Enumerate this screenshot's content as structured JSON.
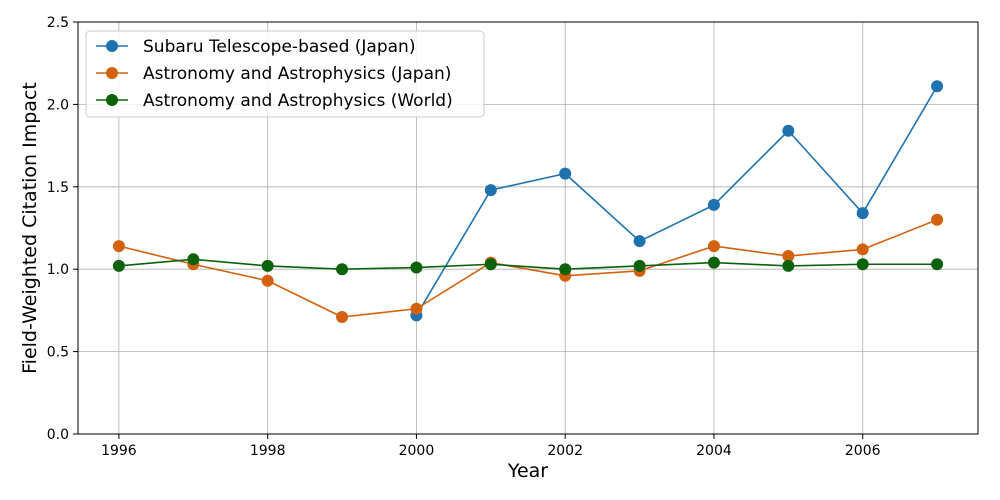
{
  "chart_data": {
    "type": "line",
    "title": "",
    "xlabel": "Year",
    "ylabel": "Field-Weighted Citation Impact",
    "xlim": [
      1995.45,
      2007.55
    ],
    "ylim": [
      0,
      2.5
    ],
    "xticks": [
      1996,
      1998,
      2000,
      2002,
      2004,
      2006
    ],
    "xtick_labels": [
      "1996",
      "1998",
      "2000",
      "2002",
      "2004",
      "2006"
    ],
    "yticks": [
      0,
      0.5,
      1.0,
      1.5,
      2.0,
      2.5
    ],
    "ytick_labels": [
      "0.0",
      "0.5",
      "1.0",
      "1.5",
      "2.0",
      "2.5"
    ],
    "grid": true,
    "legend_position": "top-left",
    "series": [
      {
        "name": "Subaru Telescope-based (Japan)",
        "color": "#1f72b0",
        "x": [
          2000,
          2001,
          2002,
          2003,
          2004,
          2005,
          2006,
          2007
        ],
        "y": [
          0.72,
          1.48,
          1.58,
          1.17,
          1.39,
          1.84,
          1.34,
          2.11
        ]
      },
      {
        "name": "Astronomy and Astrophysics (Japan)",
        "color": "#d2620f",
        "x": [
          1996,
          1997,
          1998,
          1999,
          2000,
          2001,
          2002,
          2003,
          2004,
          2005,
          2006,
          2007
        ],
        "y": [
          1.14,
          1.03,
          0.93,
          0.71,
          0.76,
          1.04,
          0.96,
          0.99,
          1.14,
          1.08,
          1.12,
          1.3
        ]
      },
      {
        "name": "Astronomy and Astrophysics (World)",
        "color": "#0b620b",
        "x": [
          1996,
          1997,
          1998,
          1999,
          2000,
          2001,
          2002,
          2003,
          2004,
          2005,
          2006,
          2007
        ],
        "y": [
          1.02,
          1.06,
          1.02,
          1.0,
          1.01,
          1.03,
          1.0,
          1.02,
          1.04,
          1.02,
          1.03,
          1.03
        ]
      }
    ]
  }
}
